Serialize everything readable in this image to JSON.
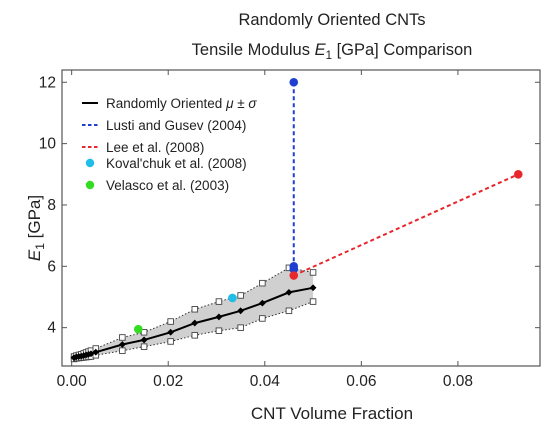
{
  "chart_data": {
    "type": "line",
    "title": "Randomly Oriented CNTs",
    "subtitle": "Tensile Modulus E₁ [GPa] Comparison",
    "title_line2": {
      "prefix": "Tensile Modulus ",
      "var": "E",
      "sub": "1",
      "suffix": " [GPa] Comparison"
    },
    "xlabel": "CNT Volume Fraction",
    "ylabel": {
      "var": "E",
      "sub": "1",
      "suffix": " [GPa]"
    },
    "xlim": [
      -0.002,
      0.097
    ],
    "ylim": [
      2.75,
      12.4
    ],
    "xticks": [
      0,
      0.02,
      0.04,
      0.06,
      0.08
    ],
    "xtick_labels": [
      "0.00",
      "0.02",
      "0.04",
      "0.06",
      "0.08"
    ],
    "yticks": [
      4,
      6,
      8,
      10,
      12
    ],
    "ytick_labels": [
      "4",
      "6",
      "8",
      "10",
      "12"
    ],
    "grid": false,
    "legend_position": "top-left",
    "series": [
      {
        "name": "Randomly Oriented μ ± σ",
        "legend": {
          "prefix": "Randomly Oriented ",
          "mu": "μ",
          "rest": " ± ",
          "sigma": "σ"
        },
        "style": "solid",
        "color": "#000000",
        "x": [
          0.0005,
          0.001,
          0.0015,
          0.002,
          0.0025,
          0.003,
          0.0035,
          0.004,
          0.005,
          0.0105,
          0.015,
          0.0205,
          0.0255,
          0.0305,
          0.035,
          0.0395,
          0.045,
          0.05
        ],
        "y": [
          3.02,
          3.05,
          3.06,
          3.07,
          3.09,
          3.11,
          3.13,
          3.15,
          3.2,
          3.45,
          3.6,
          3.85,
          4.15,
          4.35,
          4.55,
          4.8,
          5.15,
          5.3
        ],
        "band_upper": [
          3.06,
          3.09,
          3.11,
          3.13,
          3.16,
          3.19,
          3.22,
          3.25,
          3.32,
          3.68,
          3.85,
          4.2,
          4.6,
          4.85,
          5.05,
          5.45,
          5.95,
          5.8
        ],
        "band_lower": [
          2.98,
          3.0,
          3.01,
          3.02,
          3.03,
          3.04,
          3.05,
          3.06,
          3.1,
          3.25,
          3.38,
          3.55,
          3.75,
          3.9,
          4.0,
          4.3,
          4.55,
          4.85
        ],
        "band_color": "#d0d0d0"
      },
      {
        "name": "Lusti and Gusev (2004)",
        "style": "dashed",
        "color": "#1f3fd0",
        "x": [
          0.046,
          0.046,
          0.046
        ],
        "y": [
          12.0,
          6.0,
          5.9
        ]
      },
      {
        "name": "Lee et al. (2008)",
        "style": "dashed",
        "color": "#e8262b",
        "x": [
          0.046,
          0.0925
        ],
        "y": [
          5.7,
          9.0
        ]
      },
      {
        "name": "Koval'chuk et al. (2008)",
        "style": "marker",
        "color": "#1fbde8",
        "x": [
          0.0333
        ],
        "y": [
          4.97
        ]
      },
      {
        "name": "Velasco et al. (2003)",
        "style": "marker",
        "color": "#33dd22",
        "x": [
          0.0138
        ],
        "y": [
          3.95
        ]
      }
    ]
  }
}
